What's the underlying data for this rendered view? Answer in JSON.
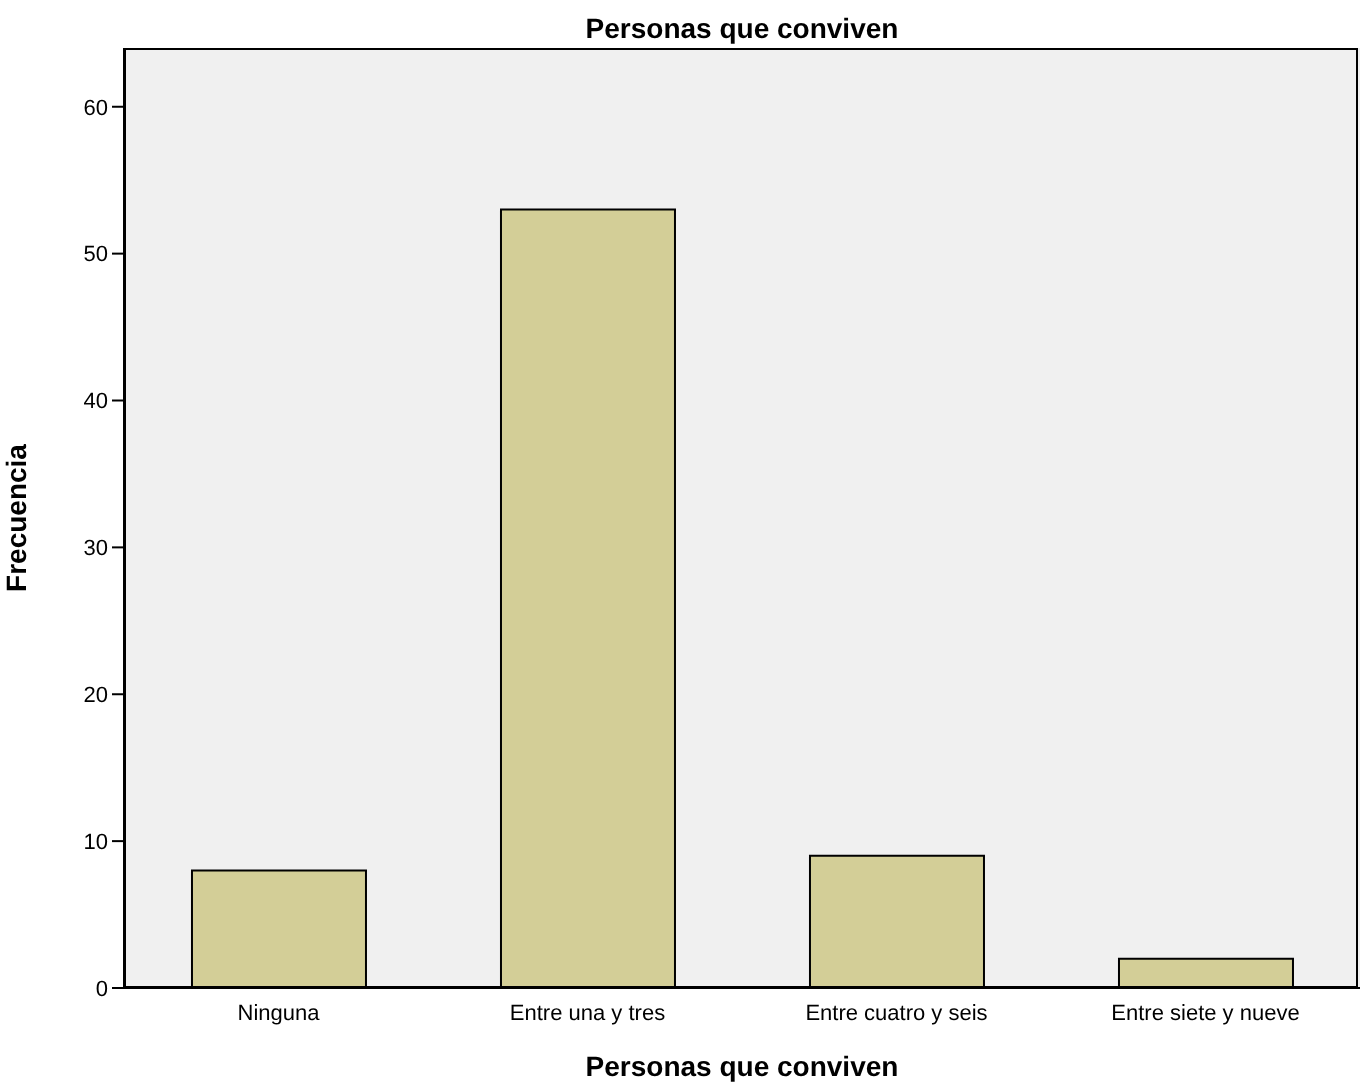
{
  "chart_data": {
    "type": "bar",
    "title": "Personas que conviven",
    "xlabel": "Personas que conviven",
    "ylabel": "Frecuencia",
    "categories": [
      "Ninguna",
      "Entre una y tres",
      "Entre cuatro y seis",
      "Entre siete y nueve"
    ],
    "values": [
      8,
      53,
      9,
      2
    ],
    "color": "#d3ce97",
    "ylim": [
      0,
      64
    ],
    "yticks": [
      0,
      10,
      20,
      30,
      40,
      50,
      60
    ],
    "grid": false
  }
}
